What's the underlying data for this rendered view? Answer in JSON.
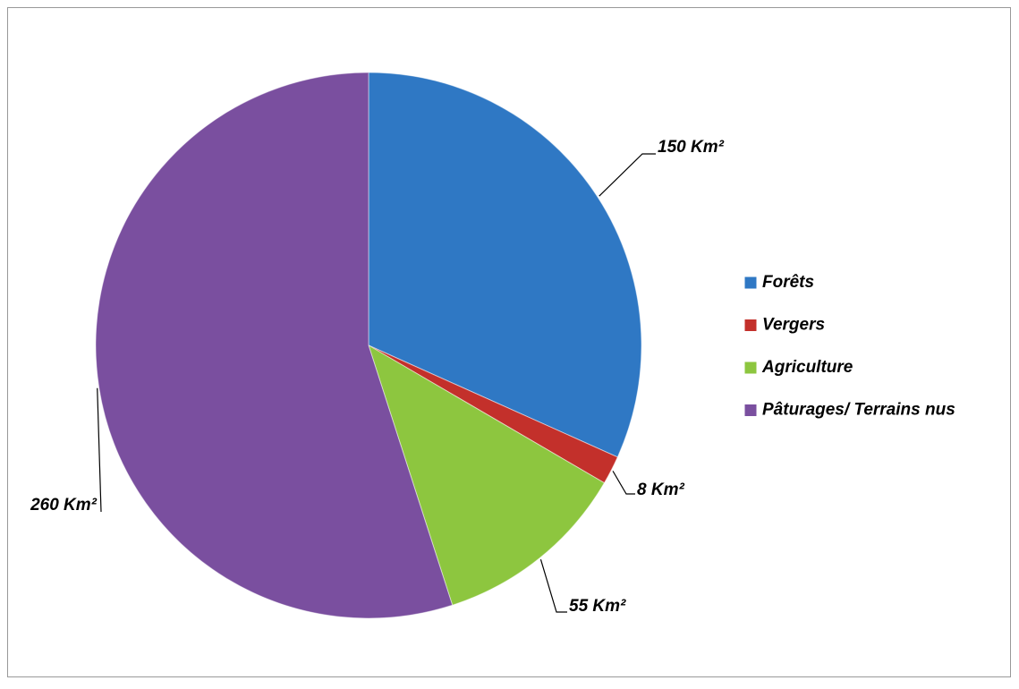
{
  "chart_data": {
    "type": "pie",
    "categories": [
      "Forêts",
      "Vergers",
      "Agriculture",
      "Pâturages/ Terrains nus"
    ],
    "values": [
      150,
      8,
      55,
      260
    ],
    "value_labels": [
      "150 Km²",
      "8 Km²",
      "55 Km²",
      "260 Km²"
    ],
    "colors": [
      "#2f78c4",
      "#c3302b",
      "#8dc63f",
      "#7a4f9f"
    ],
    "legend": "right"
  }
}
